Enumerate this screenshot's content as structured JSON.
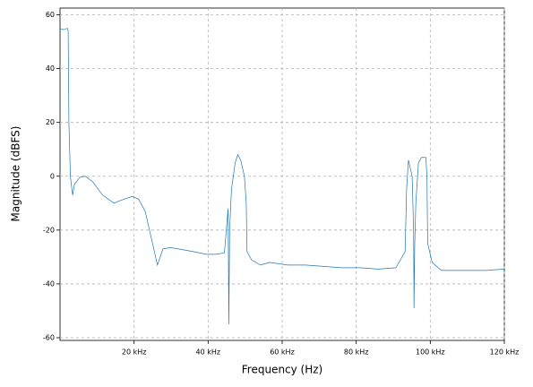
{
  "chart_data": {
    "type": "line",
    "x_label": "Frequency (Hz)",
    "y_label": "Magnitude (dBFS)",
    "xlim": [
      0,
      120000
    ],
    "ylim": [
      -61,
      62.5
    ],
    "xticks": [
      {
        "value": 20000,
        "label": "20 kHz"
      },
      {
        "value": 40000,
        "label": "40 kHz"
      },
      {
        "value": 60000,
        "label": "60 kHz"
      },
      {
        "value": 80000,
        "label": "80 kHz"
      },
      {
        "value": 100000,
        "label": "100 kHz"
      },
      {
        "value": 120000,
        "label": "120 kHz"
      }
    ],
    "yticks": [
      -60,
      -40,
      -20,
      0,
      20,
      40,
      60
    ],
    "grid": true,
    "series": [
      {
        "name": "magnitude",
        "color": "#1f77b4",
        "x": [
          0,
          1000,
          2000,
          2200,
          2400,
          2800,
          3400,
          3900,
          5400,
          6800,
          8800,
          11500,
          14600,
          16300,
          19500,
          21200,
          23000,
          25000,
          26300,
          27800,
          29800,
          32000,
          36000,
          39500,
          42000,
          44400,
          45400,
          45600,
          45800,
          46300,
          47300,
          48000,
          48800,
          49800,
          50300,
          50500,
          51700,
          54100,
          56600,
          61500,
          66300,
          71200,
          76000,
          81000,
          85900,
          90700,
          93200,
          93600,
          94100,
          95100,
          95500,
          95600,
          95800,
          96100,
          96800,
          97600,
          98800,
          99100,
          99300,
          100500,
          103000,
          105400,
          110000,
          115000,
          120000
        ],
        "values": [
          54.7,
          54.5,
          55,
          54,
          20,
          0,
          -7,
          -3,
          -0.3,
          0,
          -2,
          -7,
          -10,
          -9,
          -7.5,
          -8.5,
          -13,
          -25,
          -33,
          -27,
          -26.5,
          -27,
          -28,
          -29,
          -29,
          -28.5,
          -12,
          -55,
          -20,
          -5,
          5,
          8,
          6,
          0,
          -10,
          -28,
          -31,
          -33,
          -32,
          -33,
          -33,
          -33.5,
          -34,
          -34,
          -34.5,
          -34,
          -28,
          -5,
          6,
          0,
          -20,
          -49,
          -25,
          -10,
          5,
          7,
          7,
          0,
          -25,
          -32,
          -35,
          -35,
          -35,
          -35,
          -34.5
        ]
      }
    ]
  }
}
